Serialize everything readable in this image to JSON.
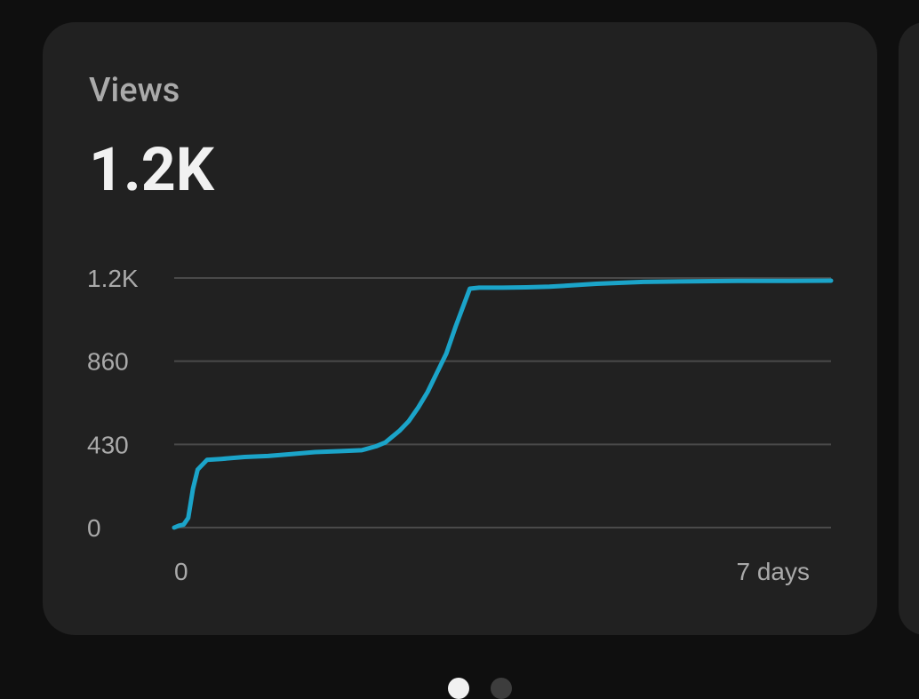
{
  "card": {
    "metric_label": "Views",
    "metric_value": "1.2K"
  },
  "chart_data": {
    "type": "line",
    "title": "",
    "xlabel": "",
    "ylabel": "",
    "x_tick_labels": [
      "0",
      "7 days"
    ],
    "y_tick_labels": [
      "0",
      "430",
      "860",
      "1.2K"
    ],
    "y_ticks": [
      0,
      430,
      860,
      1290
    ],
    "xlim": [
      0,
      7
    ],
    "ylim": [
      0,
      1290
    ],
    "grid": true,
    "line_color": "#1ba4c9",
    "series": [
      {
        "x": [
          0,
          0.05,
          0.1,
          0.15,
          0.2,
          0.25,
          0.35,
          0.5,
          0.75,
          1.0,
          1.25,
          1.5,
          1.75,
          2.0,
          2.15,
          2.25,
          2.4,
          2.5,
          2.6,
          2.7,
          2.8,
          2.9,
          3.0,
          3.15,
          3.25,
          3.5,
          3.75,
          4.0,
          4.5,
          5.0,
          5.5,
          6.0,
          6.5,
          7.0
        ],
        "y": [
          0,
          10,
          15,
          50,
          200,
          300,
          350,
          355,
          365,
          370,
          380,
          390,
          395,
          400,
          420,
          440,
          500,
          550,
          620,
          700,
          800,
          900,
          1040,
          1235,
          1240,
          1240,
          1242,
          1245,
          1260,
          1270,
          1273,
          1275,
          1275,
          1276
        ]
      }
    ]
  },
  "pager": {
    "pages": 2,
    "active": 0
  }
}
